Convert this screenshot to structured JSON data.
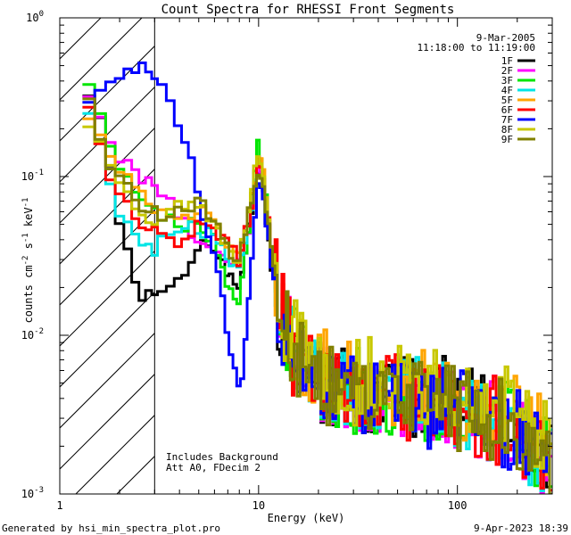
{
  "chart_data": {
    "type": "line",
    "title": "Count Spectra for RHESSI Front Segments",
    "xlabel": "Energy (keV)",
    "ylabel_parts": {
      "a": "counts cm",
      "b": "-2",
      "c": " s",
      "d": "-1",
      "e": " keV",
      "f": "-1"
    },
    "x_scale": "log",
    "y_scale": "log",
    "xlim": [
      1,
      300
    ],
    "ylim": [
      0.001,
      1
    ],
    "x_ticks": [
      {
        "v": 1,
        "label": "1"
      },
      {
        "v": 10,
        "label": "10"
      },
      {
        "v": 100,
        "label": "100"
      }
    ],
    "y_ticks": [
      {
        "v": 1,
        "base": "10",
        "exp": "0"
      },
      {
        "v": 0.1,
        "base": "10",
        "exp": "-1"
      },
      {
        "v": 0.01,
        "base": "10",
        "exp": "-2"
      },
      {
        "v": 0.001,
        "base": "10",
        "exp": "-3"
      }
    ],
    "date": "9-Mar-2005",
    "time_range": "11:18:00 to 11:19:00",
    "annotation_lines": [
      "Includes Background",
      "Att A0, FDecim 2"
    ],
    "hatched_region_keV": [
      1,
      3
    ],
    "footer_left": "Generated by hsi_min_spectra_plot.pro",
    "footer_right": "9-Apr-2023 18:39",
    "legend_position": "top-right",
    "series": [
      {
        "name": "1F",
        "color": "#000000",
        "anchors": [
          [
            1.3,
            0.4
          ],
          [
            1.5,
            0.3
          ],
          [
            1.7,
            0.15
          ],
          [
            2.1,
            0.04
          ],
          [
            2.4,
            0.02
          ],
          [
            2.6,
            0.016
          ],
          [
            3.0,
            0.02
          ],
          [
            3.5,
            0.018
          ],
          [
            4.0,
            0.022
          ],
          [
            4.6,
            0.03
          ],
          [
            5.2,
            0.045
          ],
          [
            6.0,
            0.03
          ],
          [
            7.0,
            0.025
          ],
          [
            8.0,
            0.02
          ],
          [
            9.0,
            0.05
          ],
          [
            10.0,
            0.12
          ],
          [
            10.6,
            0.08
          ],
          [
            11.5,
            0.03
          ],
          [
            12.5,
            0.015
          ],
          [
            14,
            0.009
          ],
          [
            16,
            0.006
          ],
          [
            20,
            0.005
          ],
          [
            30,
            0.0045
          ],
          [
            50,
            0.004
          ],
          [
            70,
            0.004
          ],
          [
            100,
            0.004
          ],
          [
            150,
            0.003
          ],
          [
            200,
            0.0025
          ],
          [
            250,
            0.002
          ],
          [
            290,
            0.0015
          ]
        ]
      },
      {
        "name": "2F",
        "color": "#ff00ff",
        "anchors": [
          [
            1.3,
            0.38
          ],
          [
            1.5,
            0.3
          ],
          [
            1.7,
            0.18
          ],
          [
            2.1,
            0.12
          ],
          [
            2.5,
            0.1
          ],
          [
            3.0,
            0.09
          ],
          [
            3.5,
            0.07
          ],
          [
            4.0,
            0.06
          ],
          [
            4.6,
            0.045
          ],
          [
            5.2,
            0.035
          ],
          [
            6.0,
            0.04
          ],
          [
            7.0,
            0.03
          ],
          [
            8.0,
            0.03
          ],
          [
            9.0,
            0.05
          ],
          [
            10.0,
            0.13
          ],
          [
            10.6,
            0.09
          ],
          [
            11.5,
            0.04
          ],
          [
            12.5,
            0.02
          ],
          [
            14,
            0.01
          ],
          [
            16,
            0.006
          ],
          [
            20,
            0.005
          ],
          [
            30,
            0.0045
          ],
          [
            50,
            0.004
          ],
          [
            70,
            0.004
          ],
          [
            100,
            0.0035
          ],
          [
            150,
            0.003
          ],
          [
            200,
            0.0025
          ],
          [
            250,
            0.002
          ],
          [
            290,
            0.0015
          ]
        ]
      },
      {
        "name": "3F",
        "color": "#00e600",
        "anchors": [
          [
            1.3,
            0.45
          ],
          [
            1.5,
            0.35
          ],
          [
            1.7,
            0.2
          ],
          [
            2.1,
            0.1
          ],
          [
            2.5,
            0.07
          ],
          [
            3.0,
            0.06
          ],
          [
            3.5,
            0.055
          ],
          [
            4.0,
            0.05
          ],
          [
            4.6,
            0.05
          ],
          [
            5.2,
            0.045
          ],
          [
            6.0,
            0.04
          ],
          [
            7.0,
            0.02
          ],
          [
            8.0,
            0.015
          ],
          [
            9.0,
            0.05
          ],
          [
            10.0,
            0.18
          ],
          [
            10.6,
            0.1
          ],
          [
            11.5,
            0.04
          ],
          [
            12.5,
            0.02
          ],
          [
            14,
            0.01
          ],
          [
            16,
            0.007
          ],
          [
            20,
            0.005
          ],
          [
            30,
            0.0045
          ],
          [
            50,
            0.004
          ],
          [
            70,
            0.004
          ],
          [
            100,
            0.0035
          ],
          [
            150,
            0.003
          ],
          [
            200,
            0.0025
          ],
          [
            250,
            0.002
          ],
          [
            290,
            0.0015
          ]
        ]
      },
      {
        "name": "4F",
        "color": "#00e5e5",
        "anchors": [
          [
            1.3,
            0.3
          ],
          [
            1.5,
            0.22
          ],
          [
            1.7,
            0.1
          ],
          [
            2.1,
            0.05
          ],
          [
            2.5,
            0.04
          ],
          [
            3.0,
            0.035
          ],
          [
            3.5,
            0.04
          ],
          [
            4.0,
            0.045
          ],
          [
            4.6,
            0.05
          ],
          [
            5.2,
            0.045
          ],
          [
            6.0,
            0.04
          ],
          [
            7.0,
            0.03
          ],
          [
            8.0,
            0.025
          ],
          [
            9.0,
            0.05
          ],
          [
            10.0,
            0.13
          ],
          [
            10.6,
            0.09
          ],
          [
            11.5,
            0.035
          ],
          [
            12.5,
            0.02
          ],
          [
            14,
            0.01
          ],
          [
            16,
            0.006
          ],
          [
            20,
            0.005
          ],
          [
            30,
            0.0045
          ],
          [
            50,
            0.004
          ],
          [
            70,
            0.004
          ],
          [
            100,
            0.0035
          ],
          [
            150,
            0.003
          ],
          [
            200,
            0.0025
          ],
          [
            250,
            0.002
          ],
          [
            290,
            0.0015
          ]
        ]
      },
      {
        "name": "5F",
        "color": "#ffa500",
        "anchors": [
          [
            1.3,
            0.25
          ],
          [
            1.5,
            0.22
          ],
          [
            1.7,
            0.15
          ],
          [
            2.1,
            0.1
          ],
          [
            2.5,
            0.08
          ],
          [
            3.0,
            0.06
          ],
          [
            3.5,
            0.055
          ],
          [
            4.0,
            0.05
          ],
          [
            4.6,
            0.055
          ],
          [
            5.2,
            0.06
          ],
          [
            6.0,
            0.05
          ],
          [
            7.0,
            0.035
          ],
          [
            8.0,
            0.03
          ],
          [
            9.0,
            0.06
          ],
          [
            10.0,
            0.14
          ],
          [
            10.6,
            0.1
          ],
          [
            11.5,
            0.04
          ],
          [
            12.5,
            0.02
          ],
          [
            14,
            0.01
          ],
          [
            16,
            0.007
          ],
          [
            20,
            0.006
          ],
          [
            30,
            0.005
          ],
          [
            50,
            0.005
          ],
          [
            70,
            0.0045
          ],
          [
            100,
            0.004
          ],
          [
            150,
            0.0035
          ],
          [
            200,
            0.003
          ],
          [
            250,
            0.0025
          ],
          [
            290,
            0.0018
          ]
        ]
      },
      {
        "name": "6F",
        "color": "#ff0000",
        "anchors": [
          [
            1.3,
            0.3
          ],
          [
            1.5,
            0.25
          ],
          [
            1.7,
            0.12
          ],
          [
            2.1,
            0.07
          ],
          [
            2.5,
            0.05
          ],
          [
            3.0,
            0.045
          ],
          [
            3.5,
            0.04
          ],
          [
            4.0,
            0.04
          ],
          [
            4.6,
            0.045
          ],
          [
            5.2,
            0.05
          ],
          [
            6.0,
            0.045
          ],
          [
            7.0,
            0.04
          ],
          [
            8.0,
            0.03
          ],
          [
            9.0,
            0.055
          ],
          [
            10.0,
            0.13
          ],
          [
            10.6,
            0.09
          ],
          [
            11.5,
            0.04
          ],
          [
            12.5,
            0.02
          ],
          [
            14,
            0.01
          ],
          [
            16,
            0.006
          ],
          [
            20,
            0.005
          ],
          [
            30,
            0.0045
          ],
          [
            50,
            0.004
          ],
          [
            70,
            0.004
          ],
          [
            100,
            0.0035
          ],
          [
            150,
            0.003
          ],
          [
            200,
            0.0025
          ],
          [
            250,
            0.002
          ],
          [
            290,
            0.0015
          ]
        ]
      },
      {
        "name": "7F",
        "color": "#0000ff",
        "anchors": [
          [
            1.3,
            0.28
          ],
          [
            1.5,
            0.3
          ],
          [
            1.7,
            0.35
          ],
          [
            2.0,
            0.42
          ],
          [
            2.3,
            0.45
          ],
          [
            2.7,
            0.48
          ],
          [
            3.0,
            0.45
          ],
          [
            3.4,
            0.35
          ],
          [
            3.8,
            0.25
          ],
          [
            4.3,
            0.15
          ],
          [
            4.8,
            0.1
          ],
          [
            5.2,
            0.06
          ],
          [
            5.8,
            0.035
          ],
          [
            6.3,
            0.025
          ],
          [
            6.8,
            0.012
          ],
          [
            7.2,
            0.007
          ],
          [
            7.8,
            0.005
          ],
          [
            8.4,
            0.006
          ],
          [
            9.0,
            0.02
          ],
          [
            10.0,
            0.1
          ],
          [
            10.6,
            0.07
          ],
          [
            11.5,
            0.03
          ],
          [
            12.5,
            0.015
          ],
          [
            14,
            0.009
          ],
          [
            16,
            0.006
          ],
          [
            20,
            0.005
          ],
          [
            30,
            0.004
          ],
          [
            50,
            0.004
          ],
          [
            70,
            0.0035
          ],
          [
            100,
            0.0035
          ],
          [
            150,
            0.003
          ],
          [
            200,
            0.0025
          ],
          [
            250,
            0.002
          ],
          [
            290,
            0.0015
          ]
        ]
      },
      {
        "name": "8F",
        "color": "#c8c800",
        "anchors": [
          [
            1.3,
            0.2
          ],
          [
            1.5,
            0.2
          ],
          [
            1.7,
            0.14
          ],
          [
            2.1,
            0.08
          ],
          [
            2.5,
            0.06
          ],
          [
            3.0,
            0.05
          ],
          [
            3.5,
            0.06
          ],
          [
            4.0,
            0.07
          ],
          [
            4.6,
            0.065
          ],
          [
            5.2,
            0.06
          ],
          [
            6.0,
            0.05
          ],
          [
            7.0,
            0.035
          ],
          [
            8.0,
            0.03
          ],
          [
            9.0,
            0.06
          ],
          [
            10.0,
            0.15
          ],
          [
            10.6,
            0.1
          ],
          [
            11.5,
            0.04
          ],
          [
            12.5,
            0.02
          ],
          [
            14,
            0.011
          ],
          [
            16,
            0.008
          ],
          [
            20,
            0.006
          ],
          [
            30,
            0.005
          ],
          [
            50,
            0.0055
          ],
          [
            70,
            0.005
          ],
          [
            100,
            0.0045
          ],
          [
            150,
            0.004
          ],
          [
            200,
            0.003
          ],
          [
            250,
            0.0025
          ],
          [
            290,
            0.002
          ]
        ]
      },
      {
        "name": "9F",
        "color": "#808000",
        "anchors": [
          [
            1.3,
            0.35
          ],
          [
            1.5,
            0.25
          ],
          [
            1.7,
            0.14
          ],
          [
            2.1,
            0.09
          ],
          [
            2.5,
            0.07
          ],
          [
            3.0,
            0.06
          ],
          [
            3.5,
            0.055
          ],
          [
            4.0,
            0.06
          ],
          [
            4.6,
            0.06
          ],
          [
            5.2,
            0.07
          ],
          [
            6.0,
            0.05
          ],
          [
            7.0,
            0.035
          ],
          [
            8.0,
            0.03
          ],
          [
            9.0,
            0.06
          ],
          [
            10.0,
            0.12
          ],
          [
            10.6,
            0.09
          ],
          [
            11.5,
            0.04
          ],
          [
            12.5,
            0.02
          ],
          [
            14,
            0.01
          ],
          [
            16,
            0.007
          ],
          [
            20,
            0.005
          ],
          [
            30,
            0.0045
          ],
          [
            50,
            0.004
          ],
          [
            70,
            0.004
          ],
          [
            100,
            0.0035
          ],
          [
            150,
            0.003
          ],
          [
            200,
            0.0025
          ],
          [
            250,
            0.002
          ],
          [
            290,
            0.0015
          ]
        ]
      }
    ]
  }
}
